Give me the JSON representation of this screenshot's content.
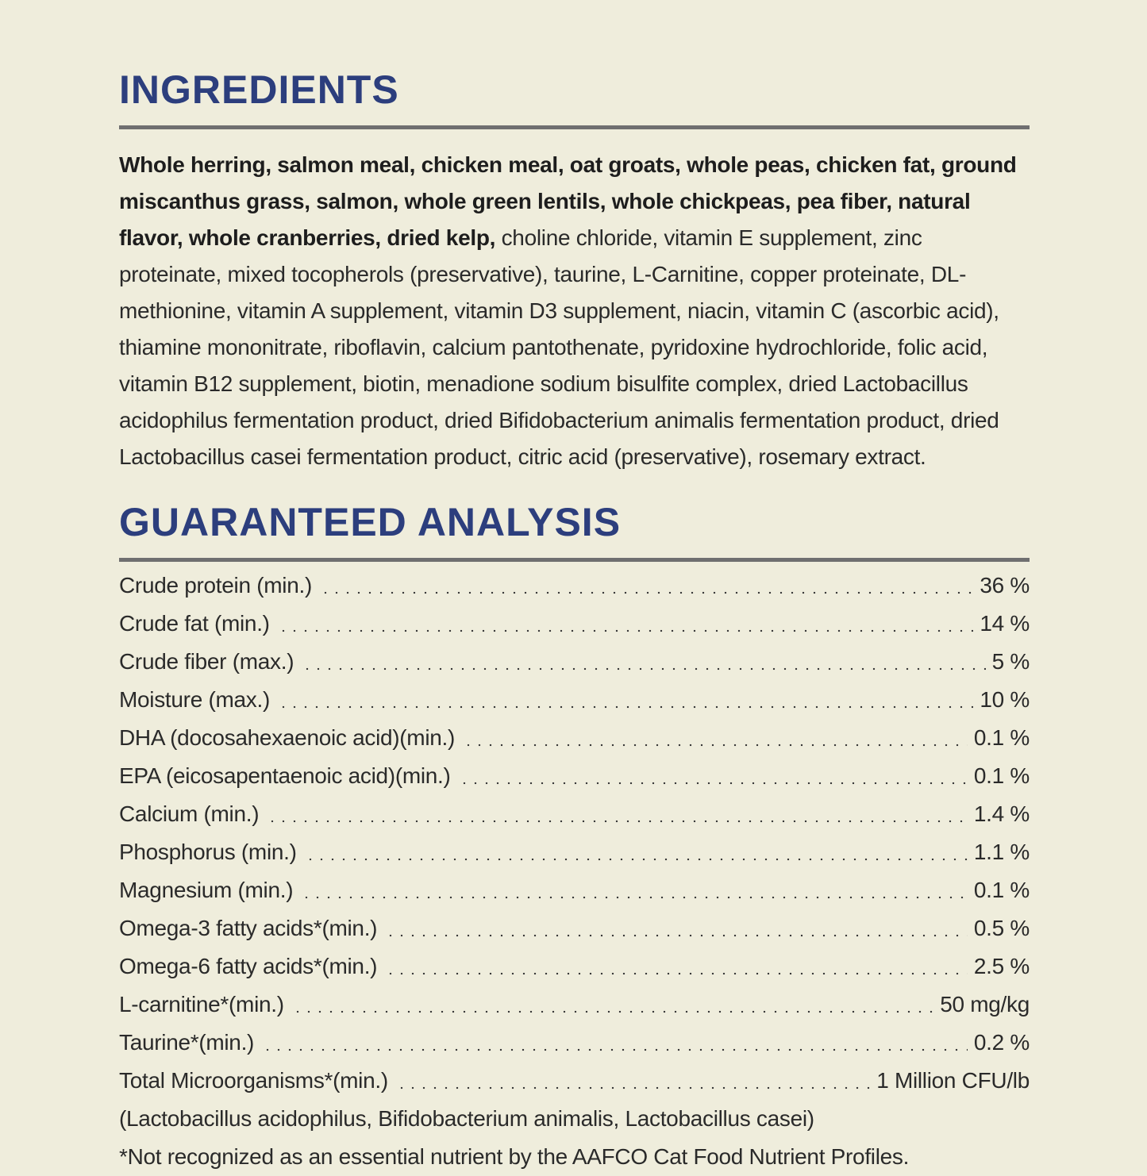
{
  "page": {
    "background_color": "#efeddc",
    "accent_color": "#2c3e7d",
    "rule_color": "#6f6f70",
    "text_color": "#2a2a2a"
  },
  "ingredients": {
    "title": "INGREDIENTS",
    "bold_text": "Whole herring, salmon meal, chicken meal, oat groats, whole peas, chicken fat, ground miscanthus grass, salmon, whole green lentils, whole chickpeas, pea fiber, natural flavor, whole cranberries, dried kelp,",
    "regular_text": " choline chloride, vitamin E supplement, zinc proteinate, mixed tocopherols (preservative), taurine, L-Carnitine, copper proteinate, DL-methionine, vitamin A supplement, vitamin D3 supplement, niacin, vitamin C (ascorbic acid), thiamine mononitrate, riboflavin, calcium pantothenate, pyridoxine hydrochloride, folic acid, vitamin B12 supplement, biotin, menadione sodium bisulfite complex, dried Lactobacillus acidophilus fermentation product, dried Bifidobacterium animalis fermentation product, dried Lactobacillus casei fermentation product, citric acid (preservative), rosemary extract."
  },
  "guaranteed_analysis": {
    "title": "GUARANTEED ANALYSIS",
    "rows": [
      {
        "label": "Crude protein (min.)",
        "value": "36 %"
      },
      {
        "label": "Crude fat (min.)",
        "value": "14 %"
      },
      {
        "label": "Crude fiber (max.)",
        "value": "5 %"
      },
      {
        "label": "Moisture (max.)",
        "value": "10 %"
      },
      {
        "label": "DHA (docosahexaenoic acid)(min.)",
        "value": "0.1 %"
      },
      {
        "label": "EPA (eicosapentaenoic acid)(min.)",
        "value": "0.1 %"
      },
      {
        "label": "Calcium (min.)",
        "value": "1.4 %"
      },
      {
        "label": "Phosphorus (min.)",
        "value": "1.1 %"
      },
      {
        "label": "Magnesium (min.)",
        "value": "0.1 %"
      },
      {
        "label": "Omega-3 fatty acids*(min.)",
        "value": "0.5 %"
      },
      {
        "label": "Omega-6 fatty acids*(min.)",
        "value": "2.5 %"
      },
      {
        "label": "L-carnitine*(min.)",
        "value": "50 mg/kg"
      },
      {
        "label": "Taurine*(min.)",
        "value": "0.2 %"
      },
      {
        "label": "Total Microorganisms*(min.)",
        "value": "1 Million CFU/lb"
      }
    ],
    "microorganisms_note": "(Lactobacillus acidophilus, Bifidobacterium animalis, Lactobacillus casei)",
    "footnote": "*Not recognized as an essential nutrient by the AAFCO Cat Food Nutrient Profiles."
  }
}
